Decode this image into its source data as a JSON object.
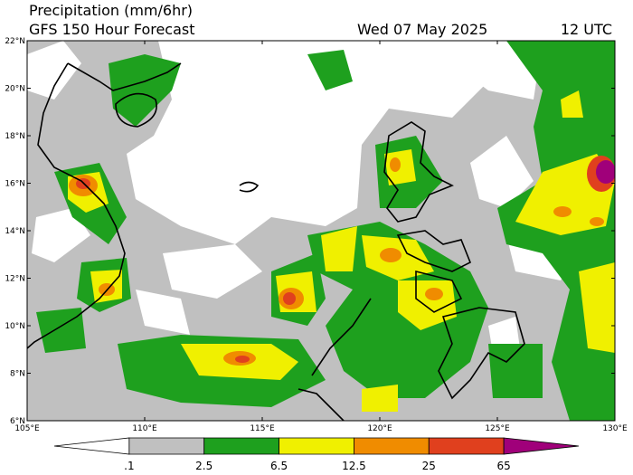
{
  "header": {
    "title": "Precipitation (mm/6hr)",
    "subtitle": "GFS 150 Hour Forecast",
    "date": "Wed 07 May 2025",
    "time": "12 UTC"
  },
  "map": {
    "xlim": [
      105,
      130
    ],
    "ylim": [
      6,
      22
    ],
    "lat_ticks": [
      {
        "value": 6,
        "label": "6°N"
      },
      {
        "value": 8,
        "label": "8°N"
      },
      {
        "value": 10,
        "label": "10°N"
      },
      {
        "value": 12,
        "label": "12°N"
      },
      {
        "value": 14,
        "label": "14°N"
      },
      {
        "value": 16,
        "label": "16°N"
      },
      {
        "value": 18,
        "label": "18°N"
      },
      {
        "value": 20,
        "label": "20°N"
      },
      {
        "value": 22,
        "label": "22°N"
      }
    ],
    "lon_ticks": [
      {
        "value": 105,
        "label": "105°E"
      },
      {
        "value": 110,
        "label": "110°E"
      },
      {
        "value": 115,
        "label": "115°E"
      },
      {
        "value": 120,
        "label": "120°E"
      },
      {
        "value": 125,
        "label": "125°E"
      },
      {
        "value": 130,
        "label": "130°E"
      }
    ]
  },
  "colorbar": {
    "levels": [
      {
        "value": 0.1,
        "label": ".1"
      },
      {
        "value": 2.5,
        "label": "2.5"
      },
      {
        "value": 6.5,
        "label": "6.5"
      },
      {
        "value": 12.5,
        "label": "12.5"
      },
      {
        "value": 25,
        "label": "25"
      },
      {
        "value": 65,
        "label": "65"
      }
    ],
    "colors": [
      "#ffffff",
      "#c0c0c0",
      "#1ea01e",
      "#f0f000",
      "#f08c00",
      "#e0401e",
      "#a0007a"
    ]
  }
}
